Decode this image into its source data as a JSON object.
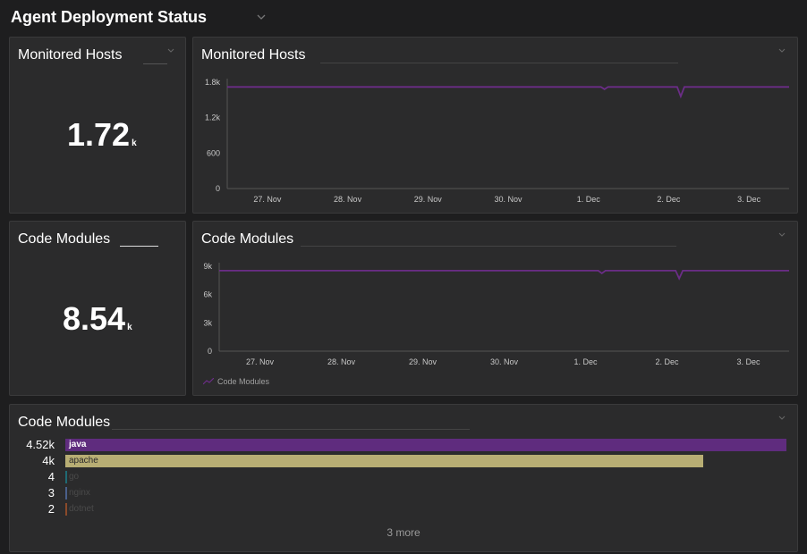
{
  "page": {
    "title": "Agent Deployment Status"
  },
  "tiles": {
    "hosts_single": {
      "title": "Monitored Hosts",
      "value": "1.72",
      "unit": "k"
    },
    "modules_single": {
      "title": "Code Modules",
      "value": "8.54",
      "unit": "k"
    },
    "hosts_chart": {
      "title": "Monitored Hosts"
    },
    "modules_chart": {
      "title": "Code Modules",
      "legend": "Code Modules"
    },
    "modules_bars": {
      "title": "Code Modules",
      "more": "3 more"
    }
  },
  "colors": {
    "series": "#6b2d87",
    "java": "#5f2c7e",
    "apache": "#b8ae74",
    "go": "#1f6a74",
    "nginx": "#4a5f8a",
    "dotnet": "#8a4a2a"
  },
  "chart_data": [
    {
      "type": "line",
      "title": "Monitored Hosts",
      "x": [
        "27. Nov",
        "28. Nov",
        "29. Nov",
        "30. Nov",
        "1. Dec",
        "2. Dec",
        "3. Dec"
      ],
      "yticks": [
        "0",
        "600",
        "1.2k",
        "1.8k"
      ],
      "ylim": [
        0,
        1800
      ],
      "series": [
        {
          "values": [
            1720,
            1720,
            1720,
            1720,
            1720,
            1720,
            1720
          ],
          "dips": [
            {
              "at": 4.2,
              "value": 1680
            },
            {
              "at": 5.15,
              "value": 1560
            }
          ]
        }
      ]
    },
    {
      "type": "line",
      "title": "Code Modules",
      "x": [
        "27. Nov",
        "28. Nov",
        "29. Nov",
        "30. Nov",
        "1. Dec",
        "2. Dec",
        "3. Dec"
      ],
      "yticks": [
        "0",
        "3k",
        "6k",
        "9k"
      ],
      "ylim": [
        0,
        9000
      ],
      "series": [
        {
          "name": "Code Modules",
          "values": [
            8540,
            8540,
            8540,
            8540,
            8540,
            8540,
            8540
          ],
          "dips": [
            {
              "at": 4.2,
              "value": 8250
            },
            {
              "at": 5.15,
              "value": 7700
            }
          ]
        }
      ]
    },
    {
      "type": "bar",
      "title": "Code Modules",
      "categories": [
        "java",
        "apache",
        "go",
        "nginx",
        "dotnet"
      ],
      "values": [
        4520,
        4000,
        4,
        3,
        2
      ],
      "value_labels": [
        "4.52k",
        "4k",
        "4",
        "3",
        "2"
      ]
    }
  ]
}
